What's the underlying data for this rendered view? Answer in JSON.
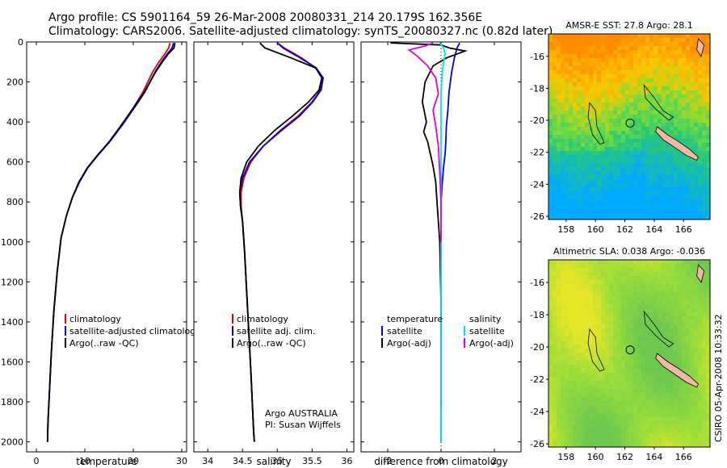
{
  "header": {
    "title": "Argo profile: CS 5901164_59 26-Mar-2008 20080331_214 20.179S 162.356E",
    "subtitle": "Climatology: CARS2006. Satellite-adjusted climatology: synTS_20080327.nc (0.82d later)"
  },
  "footer": {
    "stamp": "CSIRO 05-Apr-2008 10:33:32",
    "credit_line1": "Argo AUSTRALIA",
    "credit_line2": "PI: Susan Wijffels"
  },
  "colors": {
    "climatology": "#e00000",
    "satellite": "#0000e0",
    "argo": "#000000",
    "salinity_satellite": "#00e0ff",
    "salinity_argo": "#e000e0",
    "land": "#f2b8a0"
  },
  "chart_data": [
    {
      "type": "line",
      "xlabel": "temperature",
      "ylabel": "",
      "xlim": [
        -2,
        31
      ],
      "ylim": [
        2050,
        0
      ],
      "y_reversed": true,
      "xticks": [
        0,
        10,
        20,
        30
      ],
      "yticks": [
        0,
        200,
        400,
        600,
        800,
        1000,
        1200,
        1400,
        1600,
        1800,
        2000
      ],
      "legend": {
        "placement": "lower-right",
        "entries": [
          "climatology",
          "satellite-adjusted climatology",
          "Argo(..raw -QC)"
        ]
      },
      "series": [
        {
          "name": "climatology",
          "color_key": "climatology",
          "x": [
            27.6,
            27.3,
            26.5,
            25.3,
            24.0,
            22.0,
            20.0,
            17.5,
            15.0,
            12.5,
            10.5,
            8.8,
            7.4,
            6.2,
            5.1,
            4.3,
            3.6,
            3.1,
            2.7,
            2.4,
            2.3
          ],
          "y": [
            5,
            30,
            60,
            100,
            150,
            250,
            330,
            420,
            500,
            570,
            630,
            700,
            780,
            870,
            980,
            1150,
            1350,
            1550,
            1750,
            1900,
            2000
          ]
        },
        {
          "name": "satellite-adjusted climatology",
          "color_key": "satellite",
          "x": [
            28.3,
            28.0,
            27.0,
            25.8,
            24.5,
            22.4,
            20.2,
            17.6,
            15.1,
            12.6,
            10.6,
            8.9,
            7.4,
            6.2,
            5.1,
            4.3,
            3.6,
            3.1,
            2.7,
            2.4,
            2.3
          ],
          "y": [
            5,
            30,
            60,
            100,
            150,
            250,
            330,
            420,
            500,
            570,
            630,
            700,
            780,
            870,
            980,
            1150,
            1350,
            1550,
            1750,
            1900,
            2000
          ]
        },
        {
          "name": "Argo(..raw -QC)",
          "color_key": "argo",
          "x": [
            28.6,
            28.4,
            27.2,
            26.0,
            24.6,
            22.3,
            20.0,
            17.4,
            15.0,
            12.5,
            10.5,
            8.8,
            7.4,
            6.2,
            5.1,
            4.3,
            3.6,
            3.1,
            2.7,
            2.4,
            2.3
          ],
          "y": [
            5,
            30,
            60,
            100,
            150,
            250,
            330,
            420,
            500,
            570,
            630,
            700,
            780,
            870,
            980,
            1150,
            1350,
            1550,
            1750,
            1900,
            2000
          ]
        }
      ]
    },
    {
      "type": "line",
      "xlabel": "salinity",
      "ylabel": "",
      "xlim": [
        33.8,
        36.1
      ],
      "ylim": [
        2050,
        0
      ],
      "y_reversed": true,
      "xticks": [
        34,
        34.5,
        35,
        35.5,
        36
      ],
      "legend": {
        "placement": "lower-right",
        "entries": [
          "climatology",
          "satellite adj. clim.",
          "Argo(..raw -QC)"
        ]
      },
      "series": [
        {
          "name": "climatology",
          "color_key": "climatology",
          "x": [
            35.0,
            35.1,
            35.35,
            35.55,
            35.65,
            35.62,
            35.5,
            35.3,
            35.05,
            34.8,
            34.62,
            34.52,
            34.48,
            34.48,
            34.5,
            34.53,
            34.56,
            34.59,
            34.62,
            34.64,
            34.66,
            34.67
          ],
          "y": [
            5,
            30,
            80,
            130,
            180,
            240,
            300,
            370,
            440,
            520,
            600,
            680,
            750,
            820,
            900,
            1050,
            1250,
            1450,
            1650,
            1800,
            1950,
            2000
          ]
        },
        {
          "name": "satellite adj. clim.",
          "color_key": "satellite",
          "x": [
            35.0,
            35.08,
            35.33,
            35.56,
            35.66,
            35.63,
            35.51,
            35.32,
            35.07,
            34.8,
            34.6,
            34.5,
            34.46,
            34.47,
            34.5,
            34.53,
            34.56,
            34.59,
            34.62,
            34.64,
            34.66,
            34.67
          ],
          "y": [
            5,
            30,
            80,
            130,
            180,
            240,
            300,
            370,
            440,
            520,
            600,
            680,
            750,
            820,
            900,
            1050,
            1250,
            1450,
            1650,
            1800,
            1950,
            2000
          ]
        },
        {
          "name": "Argo(..raw -QC)",
          "color_key": "argo",
          "x": [
            34.75,
            34.82,
            35.2,
            35.55,
            35.64,
            35.6,
            35.45,
            35.22,
            34.97,
            34.73,
            34.56,
            34.48,
            34.46,
            34.47,
            34.5,
            34.53,
            34.56,
            34.59,
            34.62,
            34.64,
            34.66,
            34.67
          ],
          "y": [
            5,
            30,
            80,
            130,
            180,
            240,
            300,
            370,
            440,
            520,
            600,
            680,
            750,
            820,
            900,
            1050,
            1250,
            1450,
            1650,
            1800,
            1950,
            2000
          ]
        }
      ]
    },
    {
      "type": "line",
      "xlabel": "difference from climatology",
      "ylabel": "",
      "xlim": [
        -3.0,
        3.0
      ],
      "ylim": [
        2050,
        0
      ],
      "y_reversed": true,
      "xticks": [
        -2,
        0,
        2
      ],
      "legend": {
        "placement": "lower-center",
        "entries": [
          "temperature",
          "satellite",
          "Argo(-adj)",
          "salinity",
          "satellite",
          "Argo(-adj)"
        ]
      },
      "series": [
        {
          "name": "temperature satellite",
          "color_key": "satellite",
          "x": [
            0.7,
            0.6,
            0.5,
            0.4,
            0.3,
            0.25,
            0.2,
            0.18,
            0.15,
            0.1,
            0.05,
            0.0,
            0.0,
            0.0,
            0.0,
            0.0
          ],
          "y": [
            5,
            30,
            80,
            150,
            250,
            350,
            420,
            500,
            560,
            620,
            700,
            800,
            900,
            1100,
            1500,
            2000
          ]
        },
        {
          "name": "temperature Argo(-adj)",
          "color_key": "argo",
          "x": [
            -1.9,
            0.0,
            0.3,
            0.9,
            0.2,
            -0.3,
            -0.6,
            -0.7,
            -0.55,
            -0.65,
            -0.5,
            -0.4,
            -0.3,
            -0.2,
            -0.15,
            -0.1,
            -0.05,
            0.0,
            0.0
          ],
          "y": [
            5,
            15,
            30,
            45,
            80,
            120,
            200,
            300,
            400,
            450,
            500,
            560,
            620,
            700,
            800,
            900,
            1000,
            1300,
            1800
          ]
        },
        {
          "name": "salinity satellite",
          "color_key": "salinity_satellite",
          "x": [
            -0.05,
            0.1,
            0.15,
            0.1,
            0.05,
            0.0,
            0.0,
            0.0,
            0.0,
            0.0,
            0.0
          ],
          "y": [
            5,
            30,
            60,
            100,
            150,
            250,
            400,
            600,
            900,
            1500,
            2000
          ]
        },
        {
          "name": "salinity Argo(-adj)",
          "color_key": "salinity_argo",
          "x": [
            -0.3,
            -0.6,
            -1.2,
            -0.9,
            -0.5,
            -0.2,
            -0.1,
            -0.3,
            -0.2,
            -0.1,
            -0.05,
            0.0,
            0.0
          ],
          "y": [
            5,
            20,
            40,
            70,
            120,
            180,
            260,
            340,
            420,
            520,
            650,
            800,
            1000
          ]
        }
      ]
    },
    {
      "type": "heatmap",
      "title": "AMSR-E SST: 27.8 Argo: 28.1",
      "xlim": [
        156.8,
        167.8
      ],
      "ylim": [
        -26.2,
        -14.6
      ],
      "xticks": [
        158,
        160,
        162,
        164,
        166
      ],
      "yticks": [
        -16,
        -18,
        -20,
        -22,
        -24,
        -26
      ],
      "marker": {
        "lon": 162.356,
        "lat": -20.179
      }
    },
    {
      "type": "heatmap",
      "title": "Altimetric SLA: 0.038 Argo: -0.036",
      "xlim": [
        156.8,
        167.8
      ],
      "ylim": [
        -26.2,
        -14.6
      ],
      "xticks": [
        158,
        160,
        162,
        164,
        166
      ],
      "yticks": [
        -16,
        -18,
        -20,
        -22,
        -24,
        -26
      ],
      "marker": {
        "lon": 162.356,
        "lat": -20.179
      }
    }
  ]
}
